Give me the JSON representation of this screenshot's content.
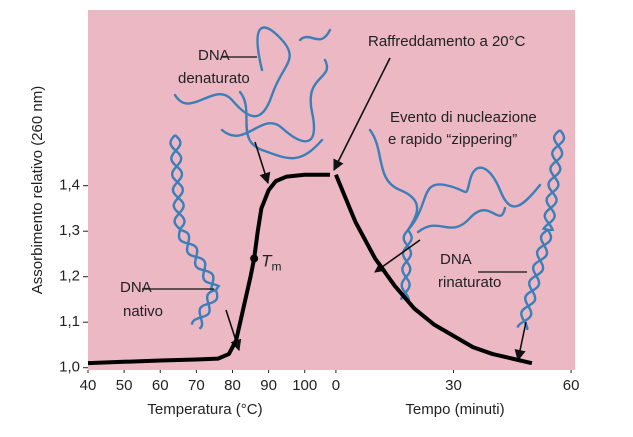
{
  "chart_data": [
    {
      "type": "line",
      "ylabel": "Assorbimento relativo (260 nm)",
      "xlabel": "Temperatura (°C)",
      "x": [
        40,
        50,
        60,
        70,
        76,
        79,
        81,
        83,
        85,
        86,
        87,
        88,
        90,
        92,
        95,
        100,
        107
      ],
      "series": [
        {
          "color": "#000000",
          "values": [
            1.01,
            1.013,
            1.016,
            1.018,
            1.02,
            1.03,
            1.06,
            1.13,
            1.2,
            1.24,
            1.3,
            1.35,
            1.39,
            1.41,
            1.42,
            1.424,
            1.424
          ]
        }
      ],
      "xlim": [
        40,
        107
      ],
      "xticks": [
        40,
        50,
        60,
        70,
        80,
        90,
        100
      ],
      "ylim": [
        0.995,
        1.786
      ],
      "yticks": [
        {
          "value": 1.0,
          "label": "1,0"
        },
        {
          "value": 1.1,
          "label": "1,1"
        },
        {
          "value": 1.2,
          "label": "1,2"
        },
        {
          "value": 1.3,
          "label": "1,3"
        },
        {
          "value": 1.4,
          "label": "1,4"
        }
      ],
      "background": "#ebb8c4",
      "tm": {
        "x": 86,
        "y": 1.24,
        "symbol": "T",
        "subscript": "m"
      },
      "annotations": [
        {
          "lines": [
            "DNA",
            "denaturato"
          ]
        },
        {
          "lines": [
            "Raffreddamento a 20°C"
          ]
        },
        {
          "lines": [
            "Evento di nucleazione",
            "e rapido “zippering”"
          ]
        },
        {
          "lines": [
            "DNA",
            "nativo"
          ]
        },
        {
          "lines": [
            "DNA",
            "rinaturato"
          ]
        }
      ]
    },
    {
      "type": "line",
      "xlabel": "Tempo (minuti)",
      "x": [
        0,
        5,
        10,
        15,
        20,
        25,
        30,
        35,
        40,
        45,
        50
      ],
      "series": [
        {
          "color": "#000000",
          "values": [
            1.424,
            1.32,
            1.24,
            1.18,
            1.13,
            1.095,
            1.07,
            1.045,
            1.03,
            1.02,
            1.01
          ]
        }
      ],
      "xlim": [
        -1,
        61
      ],
      "xticks": [
        0,
        30,
        60
      ],
      "ylim": [
        0.995,
        1.786
      ]
    }
  ]
}
